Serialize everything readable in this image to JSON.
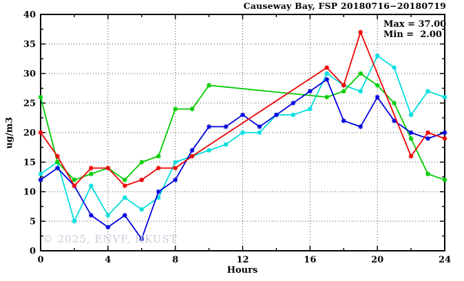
{
  "title": "Causeway Bay, FSP 20180716−20180719",
  "annotations": {
    "max_label": "Max = 37.00",
    "min_label": "Min =  2.00",
    "max_value": 37.0,
    "min_value": 2.0
  },
  "watermark": "© 2025, ENVF, HKUST",
  "colors": {
    "axis": "#000000",
    "grid": "#444444",
    "watermark": "#c9cedb",
    "series_red": "#ee0000",
    "series_green": "#00cc00",
    "series_blue": "#0000dd",
    "series_cyan": "#00dddd"
  },
  "chart_data": {
    "type": "line",
    "title": "Causeway Bay, FSP 20180716−20180719",
    "xlabel": "Hours",
    "ylabel": "ug/m3",
    "xlim": [
      0,
      24
    ],
    "ylim": [
      0,
      40
    ],
    "x_major_ticks": [
      0,
      4,
      8,
      12,
      16,
      20,
      24
    ],
    "x_minor_step": 2,
    "y_major_ticks": [
      0,
      5,
      10,
      15,
      20,
      25,
      30,
      35,
      40
    ],
    "y_minor_step": 2.5,
    "grid": "dotted-at-major-ticks",
    "legend_position": "none",
    "marker": "asterisk",
    "x": [
      0,
      1,
      2,
      3,
      4,
      5,
      6,
      7,
      8,
      9,
      10,
      11,
      12,
      13,
      14,
      15,
      16,
      17,
      18,
      19,
      20,
      21,
      22,
      23,
      24
    ],
    "series": [
      {
        "name": "cyan",
        "color": "#00dddd",
        "values": [
          13,
          15,
          5,
          11,
          6,
          9,
          7,
          9,
          15,
          16,
          17,
          18,
          20,
          20,
          23,
          23,
          24,
          30,
          28,
          27,
          33,
          31,
          23,
          27,
          26
        ]
      },
      {
        "name": "green",
        "color": "#00cc00",
        "values": [
          26,
          15,
          12,
          13,
          14,
          12,
          15,
          16,
          24,
          24,
          28,
          null,
          null,
          null,
          null,
          null,
          null,
          26,
          27,
          30,
          28,
          25,
          19,
          13,
          12
        ]
      },
      {
        "name": "blue",
        "color": "#0000dd",
        "values": [
          12,
          14,
          11,
          6,
          4,
          6,
          2,
          10,
          12,
          17,
          21,
          21,
          23,
          21,
          23,
          25,
          27,
          29,
          22,
          21,
          26,
          22,
          20,
          19,
          20
        ]
      },
      {
        "name": "red",
        "color": "#ee0000",
        "values": [
          20,
          16,
          11,
          14,
          14,
          11,
          12,
          14,
          14,
          16,
          null,
          null,
          null,
          null,
          null,
          null,
          null,
          31,
          28,
          37,
          null,
          null,
          16,
          20,
          19
        ]
      }
    ]
  }
}
